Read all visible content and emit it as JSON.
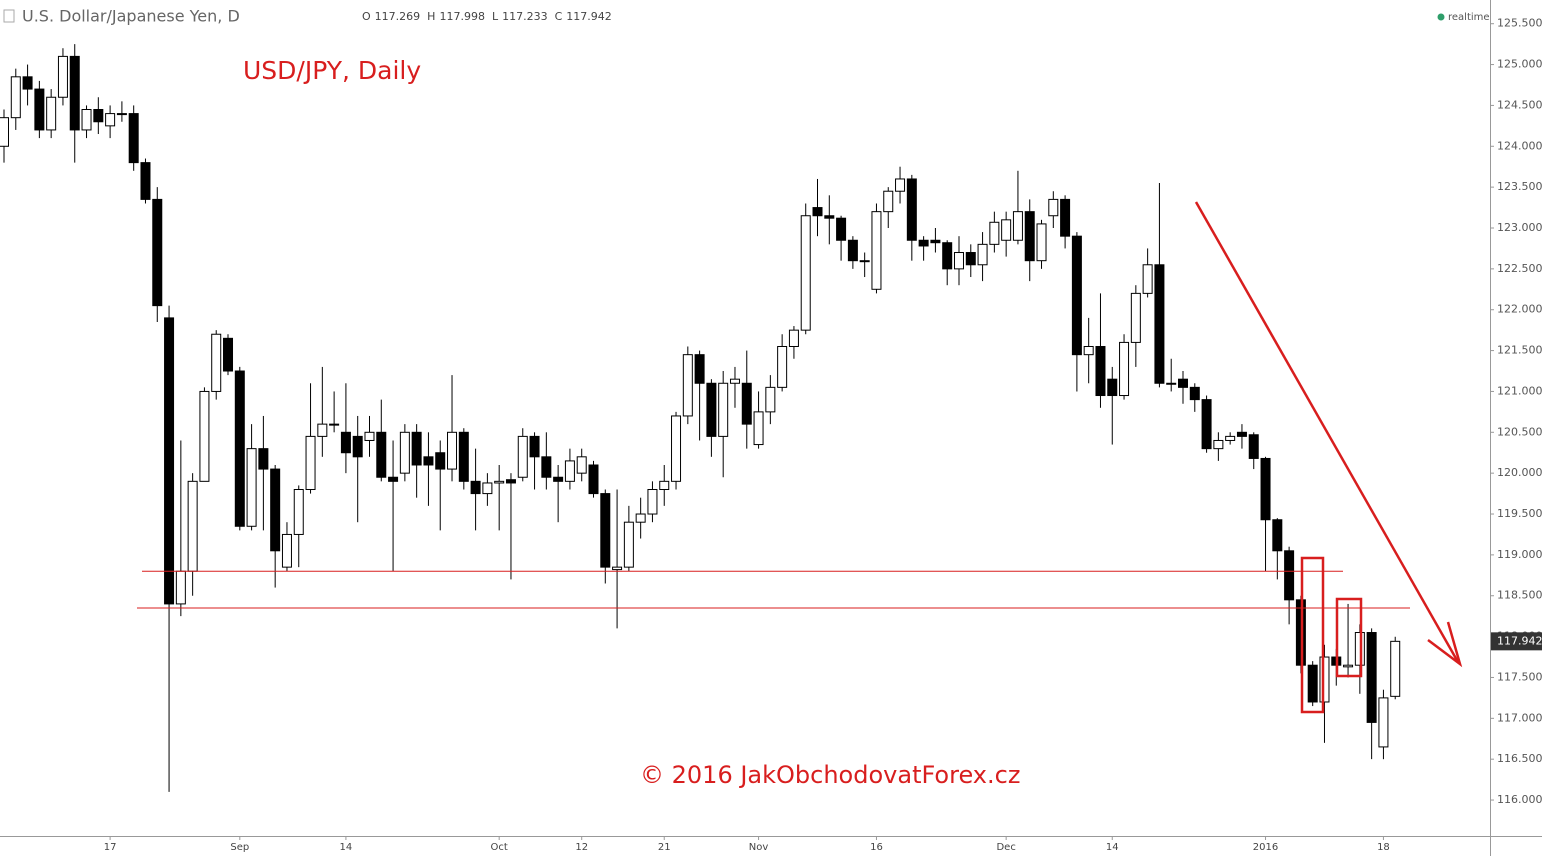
{
  "chart_data": {
    "type": "candlestick",
    "title": "U.S. Dollar/Japanese Yen, D",
    "ohlc_labels": [
      "O",
      "H",
      "L",
      "C"
    ],
    "status": "realtime",
    "annotations": [
      "USD/JPY, Daily",
      "© 2016 JakObchodovatForex.cz"
    ],
    "up_color": "#ffffff",
    "down_color": "#000000",
    "line_color": "#d81e1e",
    "categories": [
      null,
      null,
      null,
      null,
      null,
      null,
      null,
      null,
      null,
      "17",
      null,
      null,
      null,
      null,
      null,
      null,
      null,
      null,
      null,
      null,
      "Sep",
      null,
      null,
      null,
      null,
      null,
      null,
      null,
      null,
      "14",
      null,
      null,
      null,
      null,
      null,
      null,
      null,
      null,
      null,
      null,
      null,
      null,
      "Oct",
      null,
      null,
      null,
      null,
      null,
      null,
      "12",
      null,
      null,
      null,
      null,
      null,
      null,
      "21",
      null,
      null,
      null,
      null,
      null,
      null,
      null,
      "Nov",
      null,
      null,
      null,
      null,
      null,
      null,
      null,
      null,
      null,
      "16",
      null,
      null,
      null,
      null,
      null,
      null,
      null,
      null,
      null,
      null,
      "Dec",
      null,
      null,
      null,
      null,
      null,
      null,
      null,
      null,
      "14",
      null,
      null,
      null,
      null,
      null,
      null,
      null,
      null,
      null,
      null,
      null,
      null,
      "2016",
      null,
      null,
      null,
      null,
      null,
      null,
      null,
      null,
      null,
      "18",
      null
    ],
    "open": [
      124.0,
      124.35,
      124.85,
      124.7,
      124.2,
      124.6,
      125.1,
      124.2,
      124.45,
      124.25,
      124.4,
      124.4,
      123.8,
      123.35,
      121.9,
      118.4,
      118.8,
      119.9,
      121.0,
      121.65,
      121.25,
      119.35,
      120.3,
      120.05,
      118.85,
      119.25,
      119.8,
      120.45,
      120.6,
      120.5,
      120.45,
      120.4,
      120.5,
      119.95,
      120.0,
      120.5,
      120.2,
      120.25,
      120.05,
      120.5,
      119.9,
      119.75,
      119.88,
      119.92,
      119.95,
      120.45,
      120.2,
      119.95,
      119.9,
      120.0,
      120.1,
      119.75,
      118.82,
      118.85,
      119.4,
      119.5,
      119.8,
      119.9,
      120.7,
      121.45,
      121.1,
      120.45,
      121.1,
      121.1,
      120.35,
      120.75,
      121.05,
      121.55,
      121.75,
      123.25,
      123.15,
      123.12,
      122.85,
      122.6,
      122.25,
      123.2,
      123.45,
      123.6,
      122.85,
      122.85,
      122.82,
      122.5,
      122.7,
      122.55,
      122.8,
      122.85,
      122.85,
      123.2,
      122.6,
      123.15,
      123.35,
      122.9,
      121.45,
      121.55,
      121.15,
      120.95,
      121.6,
      122.2,
      122.55,
      121.1,
      121.15,
      121.05,
      120.9,
      120.3,
      120.4,
      120.5,
      120.47,
      120.18,
      119.43,
      119.05,
      118.45,
      117.65,
      117.2,
      117.75,
      117.63,
      117.65,
      118.05,
      116.65,
      117.269
    ],
    "high": [
      124.45,
      124.95,
      125.0,
      124.8,
      124.7,
      125.2,
      125.25,
      124.5,
      124.6,
      124.5,
      124.55,
      124.5,
      123.85,
      123.5,
      122.05,
      120.4,
      120.0,
      121.05,
      121.75,
      121.7,
      121.3,
      120.6,
      120.7,
      120.1,
      119.4,
      119.85,
      121.1,
      121.3,
      121.0,
      121.1,
      120.7,
      120.7,
      120.9,
      120.4,
      120.6,
      120.6,
      120.5,
      120.4,
      121.2,
      120.55,
      120.3,
      120.0,
      120.1,
      120.0,
      120.55,
      120.5,
      120.5,
      120.1,
      120.3,
      120.3,
      120.15,
      119.8,
      119.8,
      119.6,
      119.7,
      119.9,
      120.1,
      120.75,
      121.55,
      121.5,
      121.15,
      121.25,
      121.3,
      121.5,
      121.0,
      121.2,
      121.7,
      121.8,
      123.3,
      123.6,
      123.4,
      123.15,
      122.9,
      122.7,
      123.3,
      123.5,
      123.75,
      123.65,
      122.9,
      123.0,
      122.85,
      122.9,
      122.8,
      122.95,
      123.2,
      123.2,
      123.7,
      123.35,
      123.1,
      123.45,
      123.4,
      122.95,
      121.9,
      122.2,
      121.3,
      121.7,
      122.3,
      122.75,
      123.55,
      121.4,
      121.25,
      121.1,
      120.95,
      120.5,
      120.5,
      120.6,
      120.5,
      120.2,
      119.45,
      119.1,
      118.5,
      117.7,
      117.9,
      117.85,
      118.4,
      118.15,
      118.1,
      117.35,
      117.998
    ],
    "low": [
      123.8,
      124.2,
      124.5,
      124.1,
      124.1,
      124.5,
      123.8,
      124.1,
      124.15,
      124.1,
      124.3,
      123.7,
      123.3,
      121.85,
      116.1,
      118.25,
      118.5,
      119.9,
      120.9,
      121.2,
      119.3,
      119.3,
      119.3,
      118.6,
      118.8,
      118.85,
      119.75,
      120.2,
      120.5,
      120.0,
      119.4,
      120.2,
      119.9,
      118.8,
      119.9,
      119.7,
      119.6,
      119.3,
      119.9,
      119.8,
      119.3,
      119.6,
      119.3,
      118.7,
      119.9,
      119.8,
      119.8,
      119.4,
      119.8,
      119.9,
      119.7,
      118.65,
      118.1,
      118.8,
      119.2,
      119.4,
      119.6,
      119.8,
      120.6,
      120.4,
      120.2,
      119.95,
      120.8,
      120.3,
      120.3,
      120.6,
      121.0,
      121.4,
      121.7,
      122.9,
      122.8,
      122.6,
      122.5,
      122.4,
      122.2,
      123.0,
      123.3,
      122.6,
      122.6,
      122.7,
      122.3,
      122.3,
      122.4,
      122.35,
      122.7,
      122.65,
      122.8,
      122.35,
      122.5,
      123.0,
      122.75,
      121.0,
      121.1,
      120.8,
      120.35,
      120.9,
      121.3,
      122.15,
      121.05,
      121.0,
      120.85,
      120.75,
      120.25,
      120.15,
      120.35,
      120.3,
      120.05,
      118.8,
      118.7,
      118.15,
      117.55,
      117.15,
      116.7,
      117.4,
      117.5,
      117.3,
      116.5,
      116.5,
      117.233
    ],
    "close": [
      124.35,
      124.85,
      124.7,
      124.2,
      124.6,
      125.1,
      124.2,
      124.45,
      124.3,
      124.4,
      124.4,
      123.8,
      123.35,
      122.05,
      118.4,
      118.8,
      119.9,
      121.0,
      121.7,
      121.25,
      119.35,
      120.3,
      120.05,
      119.05,
      119.25,
      119.8,
      120.45,
      120.6,
      120.6,
      120.25,
      120.2,
      120.5,
      119.95,
      119.9,
      120.5,
      120.1,
      120.1,
      120.05,
      120.5,
      119.9,
      119.75,
      119.88,
      119.9,
      119.88,
      120.45,
      120.2,
      119.95,
      119.9,
      120.15,
      120.2,
      119.75,
      118.85,
      118.85,
      119.4,
      119.5,
      119.8,
      119.9,
      120.7,
      121.45,
      121.1,
      120.45,
      121.1,
      121.15,
      120.6,
      120.75,
      121.05,
      121.55,
      121.75,
      123.15,
      123.15,
      123.12,
      122.85,
      122.6,
      122.6,
      123.2,
      123.45,
      123.6,
      122.85,
      122.78,
      122.82,
      122.5,
      122.7,
      122.55,
      122.8,
      123.07,
      123.1,
      123.2,
      122.6,
      123.05,
      123.35,
      122.9,
      121.45,
      121.55,
      120.95,
      120.95,
      121.6,
      122.2,
      122.55,
      121.1,
      121.1,
      121.05,
      120.9,
      120.3,
      120.4,
      120.45,
      120.45,
      120.18,
      119.43,
      119.05,
      118.45,
      117.65,
      117.2,
      117.75,
      117.65,
      117.65,
      118.05,
      116.95,
      117.25,
      117.942
    ],
    "hlines": [
      118.8,
      118.35
    ],
    "ylim": [
      115.56,
      125.79
    ],
    "yticks": [
      {
        "value": 116,
        "label": "116.000"
      },
      {
        "value": 116.5,
        "label": "116.500"
      },
      {
        "value": 117,
        "label": "117.000"
      },
      {
        "value": 117.5,
        "label": "117.500"
      },
      {
        "value": 118,
        "label": "118.000"
      },
      {
        "value": 118.5,
        "label": "118.500"
      },
      {
        "value": 119,
        "label": "119.000"
      },
      {
        "value": 119.5,
        "label": "119.500"
      },
      {
        "value": 120,
        "label": "120.000"
      },
      {
        "value": 120.5,
        "label": "120.500"
      },
      {
        "value": 121,
        "label": "121.000"
      },
      {
        "value": 121.5,
        "label": "121.500"
      },
      {
        "value": 122,
        "label": "122.000"
      },
      {
        "value": 122.5,
        "label": "122.500"
      },
      {
        "value": 123,
        "label": "123.000"
      },
      {
        "value": 123.5,
        "label": "123.500"
      },
      {
        "value": 124,
        "label": "124.000"
      },
      {
        "value": 124.5,
        "label": "124.500"
      },
      {
        "value": 125,
        "label": "125.000"
      },
      {
        "value": 125.5,
        "label": "125.500"
      }
    ],
    "grid": false
  }
}
